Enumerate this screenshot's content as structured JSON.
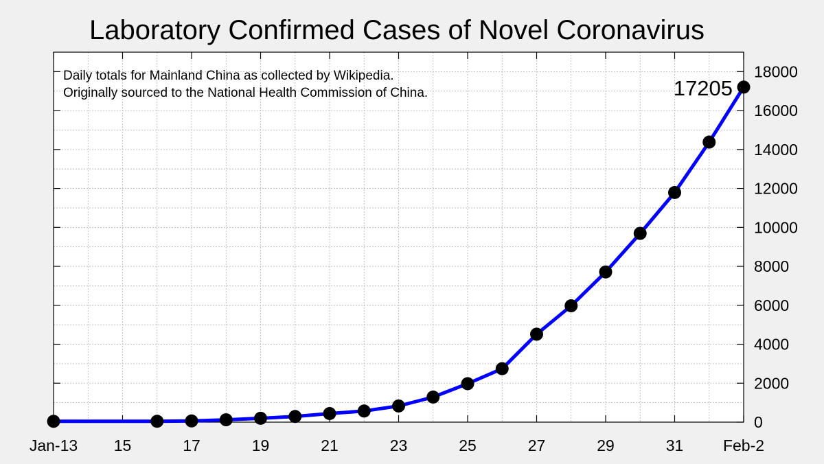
{
  "chart_data": {
    "type": "line",
    "title": "Laboratory Confirmed Cases of Novel Coronavirus",
    "annotations": [
      "Daily totals for Mainland China as collected by Wikipedia.",
      "Originally sourced to the National Health Commission of China."
    ],
    "x_dates": [
      "2020-01-13",
      "2020-01-16",
      "2020-01-17",
      "2020-01-18",
      "2020-01-19",
      "2020-01-20",
      "2020-01-21",
      "2020-01-22",
      "2020-01-23",
      "2020-01-24",
      "2020-01-25",
      "2020-01-26",
      "2020-01-27",
      "2020-01-28",
      "2020-01-29",
      "2020-01-30",
      "2020-01-31",
      "2020-02-01",
      "2020-02-02"
    ],
    "y": [
      41,
      45,
      62,
      121,
      198,
      291,
      440,
      571,
      830,
      1287,
      1975,
      2744,
      4515,
      5974,
      7711,
      9692,
      11791,
      14380,
      17205
    ],
    "x_ticks": [
      {
        "date": "2020-01-13",
        "label": "Jan-13"
      },
      {
        "date": "2020-01-15",
        "label": "15"
      },
      {
        "date": "2020-01-17",
        "label": "17"
      },
      {
        "date": "2020-01-19",
        "label": "19"
      },
      {
        "date": "2020-01-21",
        "label": "21"
      },
      {
        "date": "2020-01-23",
        "label": "23"
      },
      {
        "date": "2020-01-25",
        "label": "25"
      },
      {
        "date": "2020-01-27",
        "label": "27"
      },
      {
        "date": "2020-01-29",
        "label": "29"
      },
      {
        "date": "2020-01-31",
        "label": "31"
      },
      {
        "date": "2020-02-02",
        "label": "Feb-2"
      }
    ],
    "xlim": [
      "2020-01-13",
      "2020-02-02"
    ],
    "y_ticks": [
      0,
      2000,
      4000,
      6000,
      8000,
      10000,
      12000,
      14000,
      16000,
      18000
    ],
    "ylim": [
      0,
      19000
    ],
    "y_axis_side": "right",
    "grid": true,
    "callout": {
      "label": "17205",
      "date": "2020-02-02",
      "value": 17205
    },
    "colors": {
      "line": "#0000ff",
      "marker": "#000000",
      "grid": "#b4b4b4",
      "plot_background": "#ffffff",
      "page_background": "#f0f0f0"
    }
  }
}
